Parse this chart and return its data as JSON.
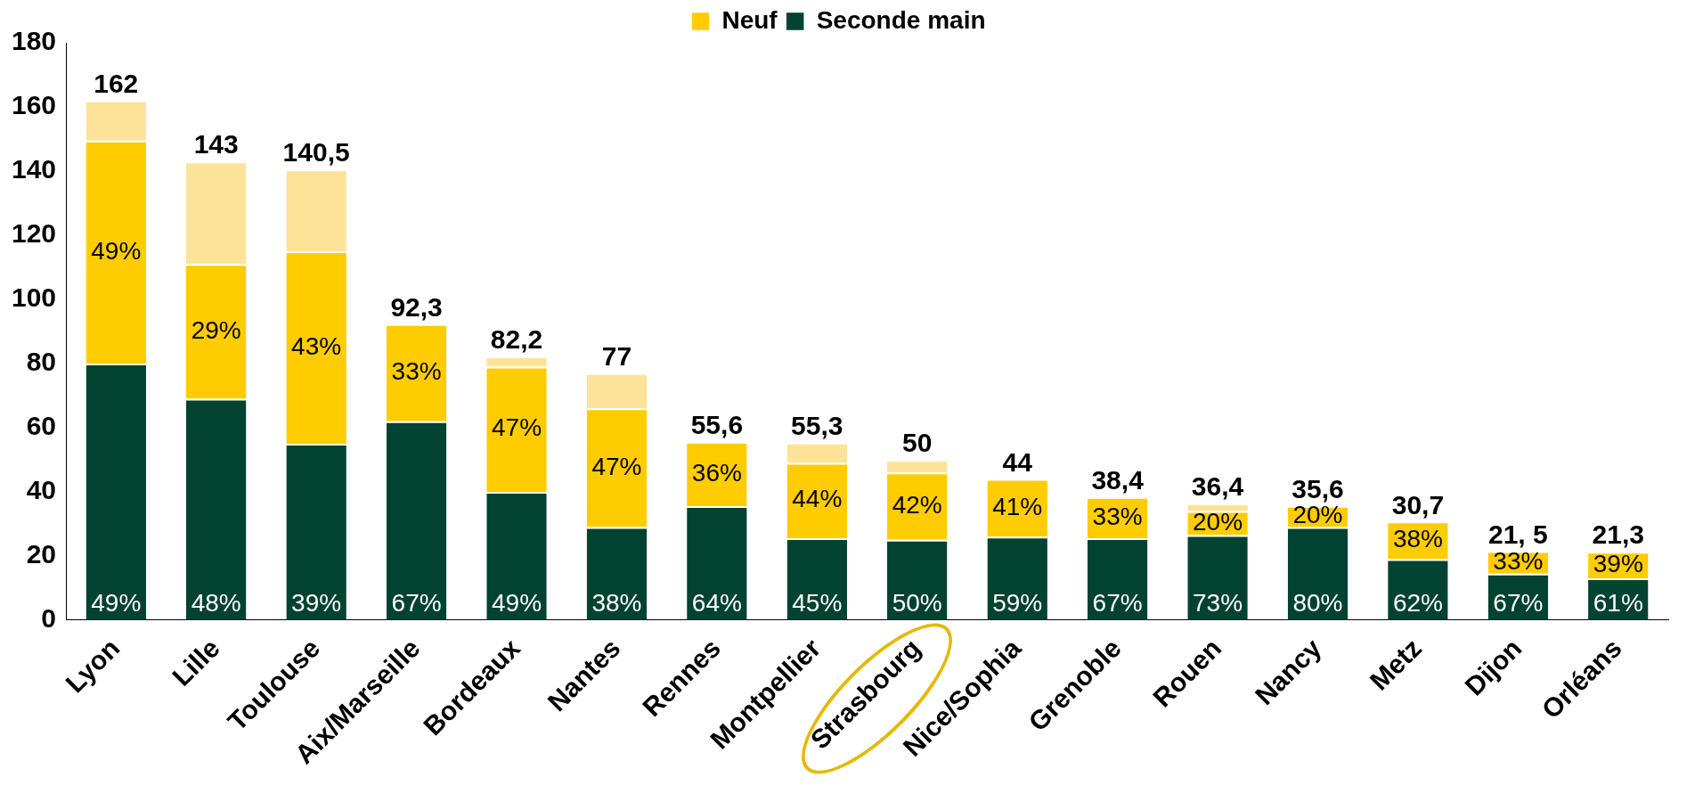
{
  "chart_data": {
    "type": "bar",
    "stacked": true,
    "categories": [
      "Lyon",
      "Lille",
      "Toulouse",
      "Aix/Marseille",
      "Bordeaux",
      "Nantes",
      "Rennes",
      "Montpellier",
      "Strasbourg",
      "Nice/Sophia",
      "Grenoble",
      "Rouen",
      "Nancy",
      "Metz",
      "Dijon",
      "Orléans"
    ],
    "series": [
      {
        "name": "Seconde main",
        "color": "#024230",
        "values": [
          80,
          69,
          55,
          62,
          40,
          29,
          35.5,
          25.5,
          25,
          26,
          25.5,
          26.5,
          29,
          19,
          14.5,
          13
        ]
      },
      {
        "name": "Neuf",
        "color": "#ffcc00",
        "values": [
          69.5,
          42,
          60,
          30.3,
          39,
          37,
          20.1,
          23.5,
          21,
          18,
          12.9,
          7.5,
          6.6,
          11.7,
          7,
          8.3
        ]
      },
      {
        "color": "#fde398",
        "values": [
          12.5,
          32,
          25.5,
          0,
          3.2,
          11,
          0,
          6.3,
          4,
          0,
          0,
          2.4,
          0,
          0,
          0,
          0
        ]
      }
    ],
    "totals": [
      "162",
      "143",
      "140,5",
      "92,3",
      "82,2",
      "77",
      "55,6",
      "55,3",
      "50",
      "44",
      "38,4",
      "36,4",
      "35,6",
      "30,7",
      "21, 5",
      "21,3"
    ],
    "annotations": [
      "49%",
      "48%",
      "39%",
      "67%",
      "49%",
      "38%",
      "64%",
      "45%",
      "50%",
      "59%",
      "67%",
      "73%",
      "80%",
      "62%",
      "67%",
      "61%",
      "49%",
      "29%",
      "43%",
      "33%",
      "47%",
      "47%",
      "36%",
      "44%",
      "42%",
      "41%",
      "33%",
      "20%",
      "20%",
      "38%",
      "33%",
      "39%"
    ],
    "ylim": [
      0,
      180
    ],
    "yticks": [
      0,
      20,
      40,
      60,
      80,
      100,
      120,
      140,
      160,
      180
    ],
    "grid": false,
    "legend": "top"
  }
}
